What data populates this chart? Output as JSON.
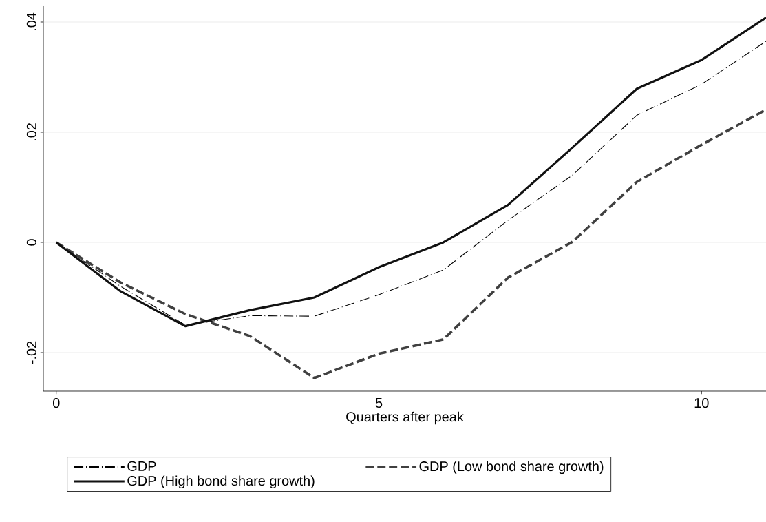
{
  "chart_data": {
    "type": "line",
    "xlabel": "Quarters after peak",
    "x": [
      0,
      1,
      2,
      3,
      4,
      5,
      6,
      7,
      8,
      9,
      10,
      11
    ],
    "xlim": [
      -0.2,
      11
    ],
    "xticks": [
      0,
      5,
      10
    ],
    "ylim": [
      -0.027,
      0.043
    ],
    "yticks": [
      {
        "value": -0.02,
        "label": "-.02"
      },
      {
        "value": 0,
        "label": "0"
      },
      {
        "value": 0.02,
        "label": ".02"
      },
      {
        "value": 0.04,
        "label": ".04"
      }
    ],
    "grid": "y",
    "legend": "bottom",
    "marker": "none",
    "series": [
      {
        "name": "GDP",
        "color": "#000000",
        "line_style": "dashdot",
        "values": [
          0,
          -0.008,
          -0.015,
          -0.0133,
          -0.0134,
          -0.0095,
          -0.005,
          0.004,
          0.0122,
          0.0231,
          0.0287,
          0.0365
        ]
      },
      {
        "name": "GDP (Low bond share growth)",
        "color": "#404040",
        "line_style": "dashed",
        "values": [
          0,
          -0.0073,
          -0.013,
          -0.017,
          -0.0246,
          -0.0202,
          -0.0176,
          -0.0064,
          0.0001,
          0.011,
          0.0177,
          0.0241
        ]
      },
      {
        "name": "GDP (High bond share growth)",
        "color": "#111111",
        "line_style": "solid",
        "values": [
          0,
          -0.0089,
          -0.0152,
          -0.0123,
          -0.01,
          -0.0045,
          0,
          0.0068,
          0.0172,
          0.0279,
          0.0331,
          0.0408
        ]
      }
    ]
  }
}
